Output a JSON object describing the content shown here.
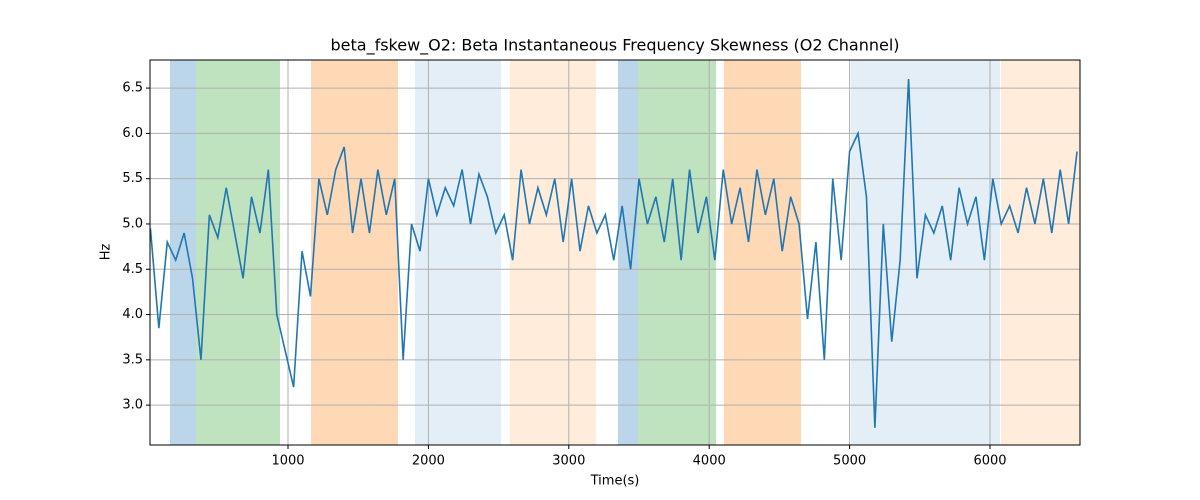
{
  "chart_data": {
    "type": "line",
    "title": "beta_fskew_O2: Beta Instantaneous Frequency Skewness (O2 Channel)",
    "xlabel": "Time(s)",
    "ylabel": "Hz",
    "xlim": [
      17,
      6641
    ],
    "ylim": [
      2.56,
      6.81
    ],
    "xticks": [
      1000,
      2000,
      3000,
      4000,
      5000,
      6000
    ],
    "yticks": [
      {
        "value": 3.0,
        "label": "3.0"
      },
      {
        "value": 3.5,
        "label": "3.5"
      },
      {
        "value": 4.0,
        "label": "4.0"
      },
      {
        "value": 4.5,
        "label": "4.5"
      },
      {
        "value": 5.0,
        "label": "5.0"
      },
      {
        "value": 5.5,
        "label": "5.5"
      },
      {
        "value": 6.0,
        "label": "6.0"
      },
      {
        "value": 6.5,
        "label": "6.5"
      }
    ],
    "grid": true,
    "spans": [
      {
        "start": 159,
        "end": 345,
        "color": "#1f77b4",
        "opacity": 0.3
      },
      {
        "start": 345,
        "end": 943,
        "color": "#2ca02c",
        "opacity": 0.3
      },
      {
        "start": 1164,
        "end": 1783,
        "color": "#ff7f0e",
        "opacity": 0.3
      },
      {
        "start": 1904,
        "end": 2517,
        "color": "#1f77b4",
        "opacity": 0.12
      },
      {
        "start": 2581,
        "end": 3194,
        "color": "#ff7f0e",
        "opacity": 0.15
      },
      {
        "start": 3350,
        "end": 3493,
        "color": "#1f77b4",
        "opacity": 0.3
      },
      {
        "start": 3493,
        "end": 4049,
        "color": "#2ca02c",
        "opacity": 0.3
      },
      {
        "start": 4105,
        "end": 4654,
        "color": "#ff7f0e",
        "opacity": 0.3
      },
      {
        "start": 5010,
        "end": 6071,
        "color": "#1f77b4",
        "opacity": 0.12
      },
      {
        "start": 6078,
        "end": 6641,
        "color": "#ff7f0e",
        "opacity": 0.15
      }
    ],
    "x": [
      20,
      80,
      140,
      200,
      260,
      320,
      380,
      440,
      500,
      560,
      620,
      680,
      740,
      800,
      860,
      920,
      980,
      1040,
      1100,
      1160,
      1220,
      1280,
      1340,
      1400,
      1460,
      1520,
      1580,
      1640,
      1700,
      1760,
      1820,
      1880,
      1940,
      2000,
      2060,
      2120,
      2180,
      2240,
      2300,
      2360,
      2420,
      2480,
      2540,
      2600,
      2660,
      2720,
      2780,
      2840,
      2900,
      2960,
      3020,
      3080,
      3140,
      3200,
      3260,
      3320,
      3380,
      3440,
      3500,
      3560,
      3620,
      3680,
      3740,
      3800,
      3860,
      3920,
      3980,
      4040,
      4100,
      4160,
      4220,
      4280,
      4340,
      4400,
      4460,
      4520,
      4580,
      4640,
      4700,
      4760,
      4820,
      4880,
      4940,
      5000,
      5060,
      5120,
      5180,
      5240,
      5300,
      5360,
      5420,
      5480,
      5540,
      5600,
      5660,
      5720,
      5780,
      5840,
      5900,
      5960,
      6020,
      6080,
      6140,
      6200,
      6260,
      6320,
      6380,
      6440,
      6500,
      6560,
      6620
    ],
    "series": [
      {
        "color": "#1f77b4",
        "values": [
          4.95,
          3.85,
          4.8,
          4.6,
          4.9,
          4.4,
          3.5,
          5.1,
          4.85,
          5.4,
          4.9,
          4.4,
          5.3,
          4.9,
          5.6,
          4.0,
          3.6,
          3.2,
          4.7,
          4.2,
          5.5,
          5.1,
          5.6,
          5.85,
          4.9,
          5.5,
          4.9,
          5.6,
          5.1,
          5.5,
          3.5,
          5.0,
          4.7,
          5.5,
          5.1,
          5.4,
          5.2,
          5.6,
          5.0,
          5.55,
          5.3,
          4.9,
          5.1,
          4.6,
          5.6,
          5.0,
          5.4,
          5.1,
          5.5,
          4.8,
          5.5,
          4.7,
          5.2,
          4.9,
          5.1,
          4.6,
          5.2,
          4.5,
          5.5,
          5.0,
          5.3,
          4.8,
          5.5,
          4.6,
          5.6,
          4.9,
          5.3,
          4.6,
          5.6,
          5.0,
          5.4,
          4.8,
          5.6,
          5.1,
          5.5,
          4.7,
          5.3,
          5.0,
          3.95,
          4.8,
          3.5,
          5.5,
          4.6,
          5.8,
          6.0,
          5.3,
          2.75,
          5.0,
          3.7,
          4.6,
          6.6,
          4.4,
          5.1,
          4.9,
          5.2,
          4.6,
          5.4,
          5.0,
          5.3,
          4.6,
          5.5,
          5.0,
          5.2,
          4.9,
          5.4,
          5.0,
          5.5,
          4.9,
          5.6,
          5.0,
          5.8
        ]
      }
    ]
  }
}
